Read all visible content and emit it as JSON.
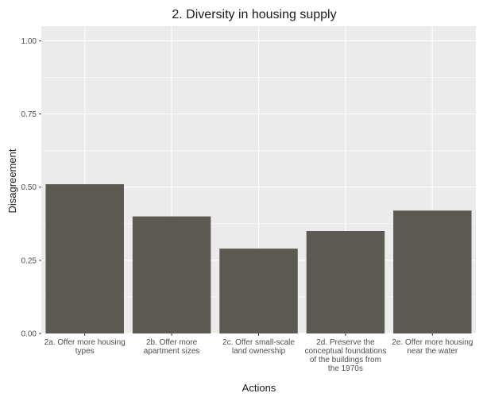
{
  "chart_data": {
    "type": "bar",
    "title": "2. Diversity in housing supply",
    "xlabel": "Actions",
    "ylabel": "Disagreement",
    "ylim": [
      0,
      1.05
    ],
    "yticks": [
      "0.00",
      "0.25",
      "0.50",
      "0.75",
      "1.00"
    ],
    "ytick_values": [
      0,
      0.25,
      0.5,
      0.75,
      1.0
    ],
    "categories": [
      [
        "2a. Offer more housing",
        "types"
      ],
      [
        "2b. Offer more",
        "apartment sizes"
      ],
      [
        "2c. Offer small-scale",
        "land ownership"
      ],
      [
        "2d. Preserve the",
        "conceptual foundations",
        "of the buildings from",
        "the 1970s"
      ],
      [
        "2e. Offer more housing",
        "near the water"
      ]
    ],
    "values": [
      0.51,
      0.4,
      0.29,
      0.35,
      0.42
    ],
    "grid": true,
    "colors": {
      "panel": "#ebebeb",
      "gridline": "#ffffff",
      "bar": "#5c5953"
    }
  }
}
